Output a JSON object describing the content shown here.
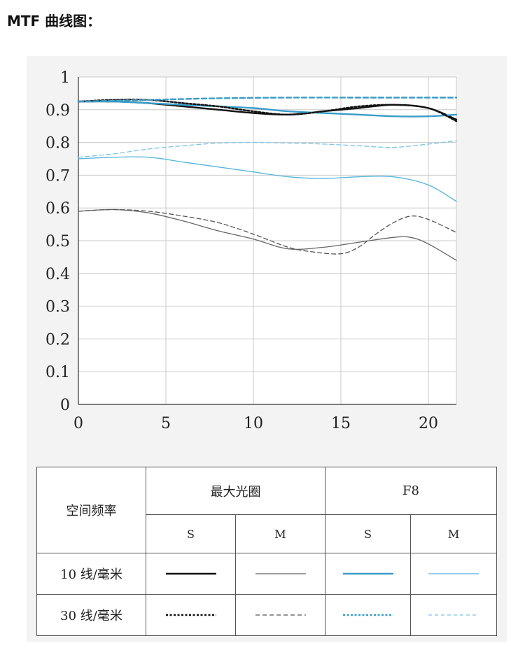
{
  "title": "MTF 曲线图：",
  "chart_data": {
    "type": "line",
    "xlim": [
      0,
      21.6
    ],
    "ylim": [
      0,
      1
    ],
    "x_ticks": [
      "0",
      "5",
      "10",
      "15",
      "20"
    ],
    "x_tick_values": [
      0,
      5,
      10,
      15,
      20
    ],
    "y_ticks": [
      "0",
      "0.1",
      "0.2",
      "0.3",
      "0.4",
      "0.5",
      "0.6",
      "0.7",
      "0.8",
      "0.9",
      "1"
    ],
    "y_tick_values": [
      0,
      0.1,
      0.2,
      0.3,
      0.4,
      0.5,
      0.6,
      0.7,
      0.8,
      0.9,
      1.0
    ],
    "grid": true,
    "series": [
      {
        "name": "最大光圈 10线/毫米 S",
        "color": "#111111",
        "dash": "solid",
        "width": "heavy",
        "x": [
          0,
          2,
          4,
          6,
          8,
          10,
          12,
          14,
          16,
          18,
          20,
          21.6
        ],
        "y": [
          0.925,
          0.925,
          0.92,
          0.91,
          0.9,
          0.89,
          0.885,
          0.895,
          0.905,
          0.915,
          0.905,
          0.87
        ]
      },
      {
        "name": "最大光圈 10线/毫米 M",
        "color": "#666666",
        "dash": "solid",
        "width": "light",
        "x": [
          0,
          2,
          4,
          6,
          8,
          10,
          12,
          14,
          16,
          18,
          19,
          20,
          21.6
        ],
        "y": [
          0.59,
          0.595,
          0.585,
          0.56,
          0.53,
          0.505,
          0.475,
          0.48,
          0.495,
          0.51,
          0.51,
          0.49,
          0.44
        ]
      },
      {
        "name": "F8 10线/毫米 S",
        "color": "#3a9cc8",
        "dash": "solid",
        "width": "heavy",
        "x": [
          0,
          2,
          4,
          6,
          8,
          10,
          12,
          14,
          16,
          18,
          20,
          21.6
        ],
        "y": [
          0.925,
          0.925,
          0.92,
          0.915,
          0.91,
          0.905,
          0.895,
          0.89,
          0.885,
          0.88,
          0.88,
          0.885
        ]
      },
      {
        "name": "F8 10线/毫米 M",
        "color": "#55b4dc",
        "dash": "solid",
        "width": "light",
        "x": [
          0,
          2,
          4,
          6,
          8,
          10,
          12,
          14,
          16,
          18,
          20,
          21.6
        ],
        "y": [
          0.75,
          0.755,
          0.755,
          0.74,
          0.725,
          0.71,
          0.695,
          0.69,
          0.695,
          0.695,
          0.67,
          0.62
        ]
      },
      {
        "name": "最大光圈 30线/毫米 S",
        "color": "#111111",
        "dash": "dotted",
        "width": "heavy",
        "x": [
          0,
          2,
          4,
          6,
          8,
          10,
          12,
          14,
          16,
          18,
          20,
          21.6
        ],
        "y": [
          0.925,
          0.93,
          0.93,
          0.92,
          0.91,
          0.895,
          0.885,
          0.895,
          0.91,
          0.915,
          0.905,
          0.865
        ]
      },
      {
        "name": "最大光圈 30线/毫米 M",
        "color": "#555555",
        "dash": "dashed",
        "width": "light",
        "x": [
          0,
          2,
          4,
          6,
          8,
          10,
          12,
          13.5,
          15,
          16,
          17,
          18,
          19,
          20,
          21.6
        ],
        "y": [
          0.59,
          0.595,
          0.59,
          0.575,
          0.555,
          0.52,
          0.48,
          0.465,
          0.46,
          0.48,
          0.52,
          0.555,
          0.575,
          0.565,
          0.525
        ]
      },
      {
        "name": "F8 30线/毫米 S",
        "color": "#3a9cc8",
        "dash": "dashed",
        "width": "heavy",
        "x": [
          0,
          4,
          8,
          12,
          16,
          20,
          21.6
        ],
        "y": [
          0.925,
          0.93,
          0.935,
          0.937,
          0.937,
          0.937,
          0.937
        ]
      },
      {
        "name": "F8 30线/毫米 M",
        "color": "#7cc4e4",
        "dash": "dashed",
        "width": "light",
        "x": [
          0,
          2,
          4,
          6,
          8,
          10,
          12,
          14,
          16,
          18,
          20,
          21.6
        ],
        "y": [
          0.755,
          0.765,
          0.78,
          0.79,
          0.798,
          0.8,
          0.798,
          0.795,
          0.79,
          0.785,
          0.795,
          0.805
        ]
      }
    ]
  },
  "legend": {
    "header_row_label": "空间频率",
    "group_max_aperture": "最大光圈",
    "group_f8": "F8",
    "col_s": "S",
    "col_m": "M",
    "row_10": "10 线/毫米",
    "row_30": "30 线/毫米"
  }
}
